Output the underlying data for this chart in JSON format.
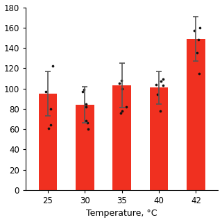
{
  "categories": [
    25,
    30,
    35,
    40,
    42
  ],
  "bar_means": [
    95,
    84,
    103,
    101,
    149
  ],
  "bar_errors_upper": [
    22,
    18,
    22,
    16,
    22
  ],
  "bar_errors_lower": [
    22,
    18,
    22,
    16,
    22
  ],
  "bar_color": "#f03020",
  "bar_edge_color": "#f03020",
  "background_color": "#ffffff",
  "xlabel": "Temperature, °C",
  "ylim": [
    0,
    180
  ],
  "yticks": [
    0,
    20,
    40,
    60,
    80,
    100,
    120,
    140,
    160,
    180
  ],
  "scatter_points": {
    "25": [
      97,
      80,
      61,
      64,
      122
    ],
    "30": [
      82,
      85,
      97,
      99,
      68,
      66,
      60
    ],
    "35": [
      100,
      105,
      108,
      82,
      76,
      78
    ],
    "40": [
      103,
      104,
      107,
      109,
      94,
      78
    ],
    "42": [
      160,
      157,
      135,
      115,
      148
    ]
  },
  "scatter_color": "#111111",
  "scatter_size": 7,
  "errorbar_color": "#555555",
  "errorbar_linewidth": 1.2,
  "errorbar_capsize": 3,
  "errorbar_capthick": 1.2,
  "bar_width": 0.5,
  "label_fontsize": 9,
  "tick_fontsize": 8.5
}
